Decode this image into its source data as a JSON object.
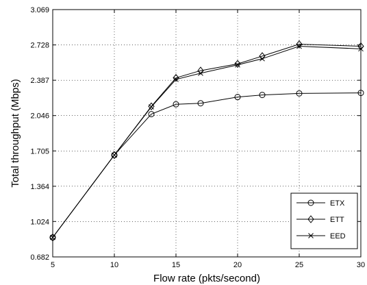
{
  "chart_data": {
    "type": "line",
    "xlabel": "Flow rate (pkts/second)",
    "ylabel": "Total throughput (Mbps)",
    "xlim": [
      5,
      30
    ],
    "ylim": [
      0.682,
      3.069
    ],
    "xticks": [
      5,
      10,
      15,
      20,
      25,
      30
    ],
    "yticks": [
      0.682,
      1.024,
      1.364,
      1.705,
      2.046,
      2.387,
      2.728,
      3.069
    ],
    "xtick_labels": [
      "5",
      "10",
      "15",
      "20",
      "25",
      "30"
    ],
    "ytick_labels": [
      "0.682",
      "1.024",
      "1.364",
      "1.705",
      "2.046",
      "2.387",
      "2.728",
      "3.069"
    ],
    "grid": true,
    "legend_position": "bottom-right",
    "series": [
      {
        "name": "ETX",
        "marker": "circle",
        "x": [
          5,
          10,
          13,
          15,
          17,
          20,
          22,
          25,
          30
        ],
        "y": [
          0.87,
          1.665,
          2.06,
          2.155,
          2.165,
          2.225,
          2.245,
          2.26,
          2.265
        ]
      },
      {
        "name": "ETT",
        "marker": "diamond",
        "x": [
          5,
          10,
          13,
          15,
          17,
          20,
          22,
          25,
          30
        ],
        "y": [
          0.87,
          1.665,
          2.135,
          2.41,
          2.48,
          2.545,
          2.62,
          2.735,
          2.715
        ]
      },
      {
        "name": "EED",
        "marker": "x",
        "x": [
          5,
          10,
          13,
          15,
          17,
          20,
          22,
          25,
          30
        ],
        "y": [
          0.87,
          1.665,
          2.13,
          2.395,
          2.455,
          2.535,
          2.595,
          2.715,
          2.69
        ]
      }
    ]
  }
}
